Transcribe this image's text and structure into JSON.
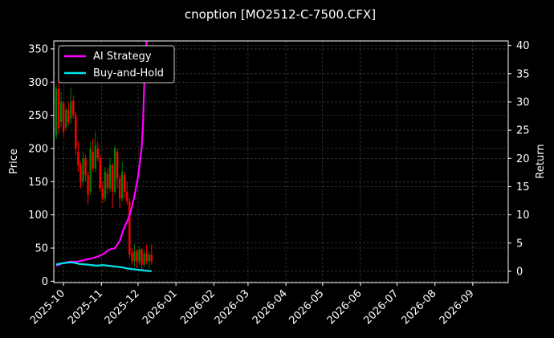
{
  "chart_data": {
    "type": "line",
    "title": "cnoption [MO2512-C-7500.CFX]",
    "ylabel_left": "Price",
    "ylabel_right": "Return",
    "x_ticks": [
      "2025-10",
      "2025-11",
      "2025-12",
      "2026-01",
      "2026-02",
      "2026-03",
      "2026-04",
      "2026-05",
      "2026-06",
      "2026-07",
      "2026-08",
      "2026-09"
    ],
    "xlim": [
      "2025-09-23",
      "2026-09-30"
    ],
    "y_left_ticks": [
      0,
      50,
      100,
      150,
      200,
      250,
      300,
      350
    ],
    "y_left_lim": [
      -2,
      362
    ],
    "y_right_ticks": [
      0,
      5,
      10,
      15,
      20,
      25,
      30,
      35,
      40
    ],
    "y_right_lim": [
      -2,
      40.8
    ],
    "grid": true,
    "legend_position": "top-left",
    "colors": {
      "up": "#008000",
      "down": "#ff0000",
      "ai": "#ff00ff",
      "bh": "#00e5ee",
      "grid": "#555555",
      "frame": "#ffffff"
    },
    "series": [
      {
        "name": "AI Strategy",
        "axis": "right",
        "color": "#ff00ff",
        "points": [
          [
            "2025-09-25",
            1.0
          ],
          [
            "2025-09-30",
            1.4
          ],
          [
            "2025-10-06",
            1.7
          ],
          [
            "2025-10-12",
            1.7
          ],
          [
            "2025-10-18",
            2.0
          ],
          [
            "2025-10-24",
            2.3
          ],
          [
            "2025-10-29",
            2.6
          ],
          [
            "2025-11-03",
            3.1
          ],
          [
            "2025-11-07",
            3.8
          ],
          [
            "2025-11-12",
            4.1
          ],
          [
            "2025-11-16",
            5.4
          ],
          [
            "2025-11-19",
            7.4
          ],
          [
            "2025-11-22",
            8.8
          ],
          [
            "2025-11-25",
            10.6
          ],
          [
            "2025-11-28",
            13.3
          ],
          [
            "2025-12-01",
            16.8
          ],
          [
            "2025-12-04",
            22.0
          ],
          [
            "2025-12-05",
            26.0
          ],
          [
            "2025-12-06",
            33.0
          ],
          [
            "2025-12-07",
            38.0
          ],
          [
            "2025-12-08",
            40.8
          ]
        ]
      },
      {
        "name": "Buy-and-Hold",
        "axis": "right",
        "color": "#00e5ee",
        "points": [
          [
            "2025-09-25",
            1.2
          ],
          [
            "2025-09-29",
            1.4
          ],
          [
            "2025-10-03",
            1.5
          ],
          [
            "2025-10-07",
            1.6
          ],
          [
            "2025-10-10",
            1.5
          ],
          [
            "2025-10-14",
            1.3
          ],
          [
            "2025-10-20",
            1.2
          ],
          [
            "2025-10-24",
            1.1
          ],
          [
            "2025-10-28",
            1.0
          ],
          [
            "2025-11-02",
            1.1
          ],
          [
            "2025-11-06",
            1.0
          ],
          [
            "2025-11-10",
            0.9
          ],
          [
            "2025-11-14",
            0.8
          ],
          [
            "2025-11-18",
            0.7
          ],
          [
            "2025-11-22",
            0.5
          ],
          [
            "2025-11-26",
            0.4
          ],
          [
            "2025-11-30",
            0.3
          ],
          [
            "2025-12-04",
            0.2
          ],
          [
            "2025-12-08",
            0.1
          ],
          [
            "2025-12-12",
            0.0
          ]
        ]
      }
    ],
    "candles": [
      {
        "date": "2025-09-25",
        "open": 220,
        "close": 290,
        "high": 296,
        "low": 214
      },
      {
        "date": "2025-09-27",
        "open": 290,
        "close": 230,
        "high": 300,
        "low": 222
      },
      {
        "date": "2025-09-29",
        "open": 240,
        "close": 270,
        "high": 285,
        "low": 232
      },
      {
        "date": "2025-10-01",
        "open": 268,
        "close": 225,
        "high": 272,
        "low": 218
      },
      {
        "date": "2025-10-03",
        "open": 232,
        "close": 258,
        "high": 262,
        "low": 228
      },
      {
        "date": "2025-10-05",
        "open": 258,
        "close": 240,
        "high": 270,
        "low": 235
      },
      {
        "date": "2025-10-07",
        "open": 245,
        "close": 270,
        "high": 292,
        "low": 238
      },
      {
        "date": "2025-10-09",
        "open": 272,
        "close": 250,
        "high": 280,
        "low": 245
      },
      {
        "date": "2025-10-11",
        "open": 250,
        "close": 200,
        "high": 255,
        "low": 190
      },
      {
        "date": "2025-10-13",
        "open": 195,
        "close": 175,
        "high": 210,
        "low": 165
      },
      {
        "date": "2025-10-15",
        "open": 175,
        "close": 150,
        "high": 180,
        "low": 140
      },
      {
        "date": "2025-10-17",
        "open": 150,
        "close": 185,
        "high": 195,
        "low": 145
      },
      {
        "date": "2025-10-19",
        "open": 185,
        "close": 160,
        "high": 190,
        "low": 150
      },
      {
        "date": "2025-10-21",
        "open": 160,
        "close": 130,
        "high": 165,
        "low": 115
      },
      {
        "date": "2025-10-23",
        "open": 135,
        "close": 200,
        "high": 210,
        "low": 130
      },
      {
        "date": "2025-10-25",
        "open": 195,
        "close": 170,
        "high": 215,
        "low": 165
      },
      {
        "date": "2025-10-27",
        "open": 170,
        "close": 205,
        "high": 225,
        "low": 165
      },
      {
        "date": "2025-10-29",
        "open": 200,
        "close": 185,
        "high": 210,
        "low": 180
      },
      {
        "date": "2025-10-31",
        "open": 185,
        "close": 140,
        "high": 190,
        "low": 135
      },
      {
        "date": "2025-11-02",
        "open": 140,
        "close": 125,
        "high": 150,
        "low": 118
      },
      {
        "date": "2025-11-04",
        "open": 125,
        "close": 165,
        "high": 172,
        "low": 120
      },
      {
        "date": "2025-11-06",
        "open": 162,
        "close": 140,
        "high": 170,
        "low": 130
      },
      {
        "date": "2025-11-08",
        "open": 140,
        "close": 175,
        "high": 185,
        "low": 135
      },
      {
        "date": "2025-11-10",
        "open": 175,
        "close": 135,
        "high": 178,
        "low": 110
      },
      {
        "date": "2025-11-12",
        "open": 135,
        "close": 200,
        "high": 205,
        "low": 130
      },
      {
        "date": "2025-11-14",
        "open": 195,
        "close": 155,
        "high": 200,
        "low": 140
      },
      {
        "date": "2025-11-16",
        "open": 155,
        "close": 125,
        "high": 160,
        "low": 110
      },
      {
        "date": "2025-11-18",
        "open": 125,
        "close": 165,
        "high": 180,
        "low": 120
      },
      {
        "date": "2025-11-20",
        "open": 160,
        "close": 135,
        "high": 165,
        "low": 125
      },
      {
        "date": "2025-11-22",
        "open": 135,
        "close": 120,
        "high": 150,
        "low": 115
      },
      {
        "date": "2025-11-24",
        "open": 120,
        "close": 40,
        "high": 125,
        "low": 35
      },
      {
        "date": "2025-11-26",
        "open": 42,
        "close": 30,
        "high": 50,
        "low": 25
      },
      {
        "date": "2025-11-28",
        "open": 30,
        "close": 45,
        "high": 55,
        "low": 22
      },
      {
        "date": "2025-11-30",
        "open": 45,
        "close": 30,
        "high": 48,
        "low": 20
      },
      {
        "date": "2025-12-02",
        "open": 30,
        "close": 48,
        "high": 52,
        "low": 25
      },
      {
        "date": "2025-12-04",
        "open": 48,
        "close": 25,
        "high": 50,
        "low": 18
      },
      {
        "date": "2025-12-06",
        "open": 25,
        "close": 42,
        "high": 48,
        "low": 22
      },
      {
        "date": "2025-12-08",
        "open": 42,
        "close": 30,
        "high": 55,
        "low": 25
      },
      {
        "date": "2025-12-10",
        "open": 30,
        "close": 40,
        "high": 45,
        "low": 20
      },
      {
        "date": "2025-12-12",
        "open": 40,
        "close": 30,
        "high": 55,
        "low": 25
      }
    ]
  }
}
